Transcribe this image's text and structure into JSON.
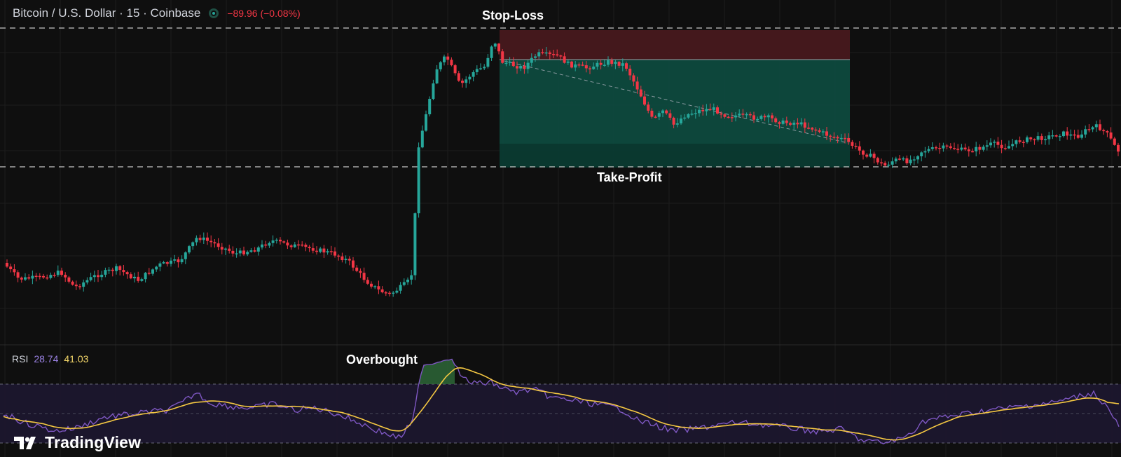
{
  "header": {
    "symbol": "Bitcoin / U.S. Dollar · 15 · Coinbase",
    "change": "−89.96 (−0.08%)",
    "status_icon": "market-status-dot-icon"
  },
  "annotations": {
    "stop_loss": "Stop-Loss",
    "take_profit": "Take-Profit",
    "overbought": "Overbought"
  },
  "rsi_panel": {
    "label": "RSI",
    "value": "28.74",
    "ma_value": "41.03",
    "bands": [
      70,
      50,
      30
    ],
    "overbought_level": 70
  },
  "branding": {
    "logo_text": "TradingView",
    "logo_icon": "tradingview-logo-icon"
  },
  "colors": {
    "up": "#26a69a",
    "down": "#f23645",
    "rsi_line": "#7e57c2",
    "rsi_ma": "#f5c842",
    "risk_zone": "#5a1e22",
    "reward_zone": "#0f4f42"
  },
  "chart_data": {
    "type": "candlestick",
    "series_count": 2,
    "trade_setup": {
      "direction": "short",
      "stop_loss_label": "Stop-Loss",
      "take_profit_label": "Take-Profit"
    }
  }
}
